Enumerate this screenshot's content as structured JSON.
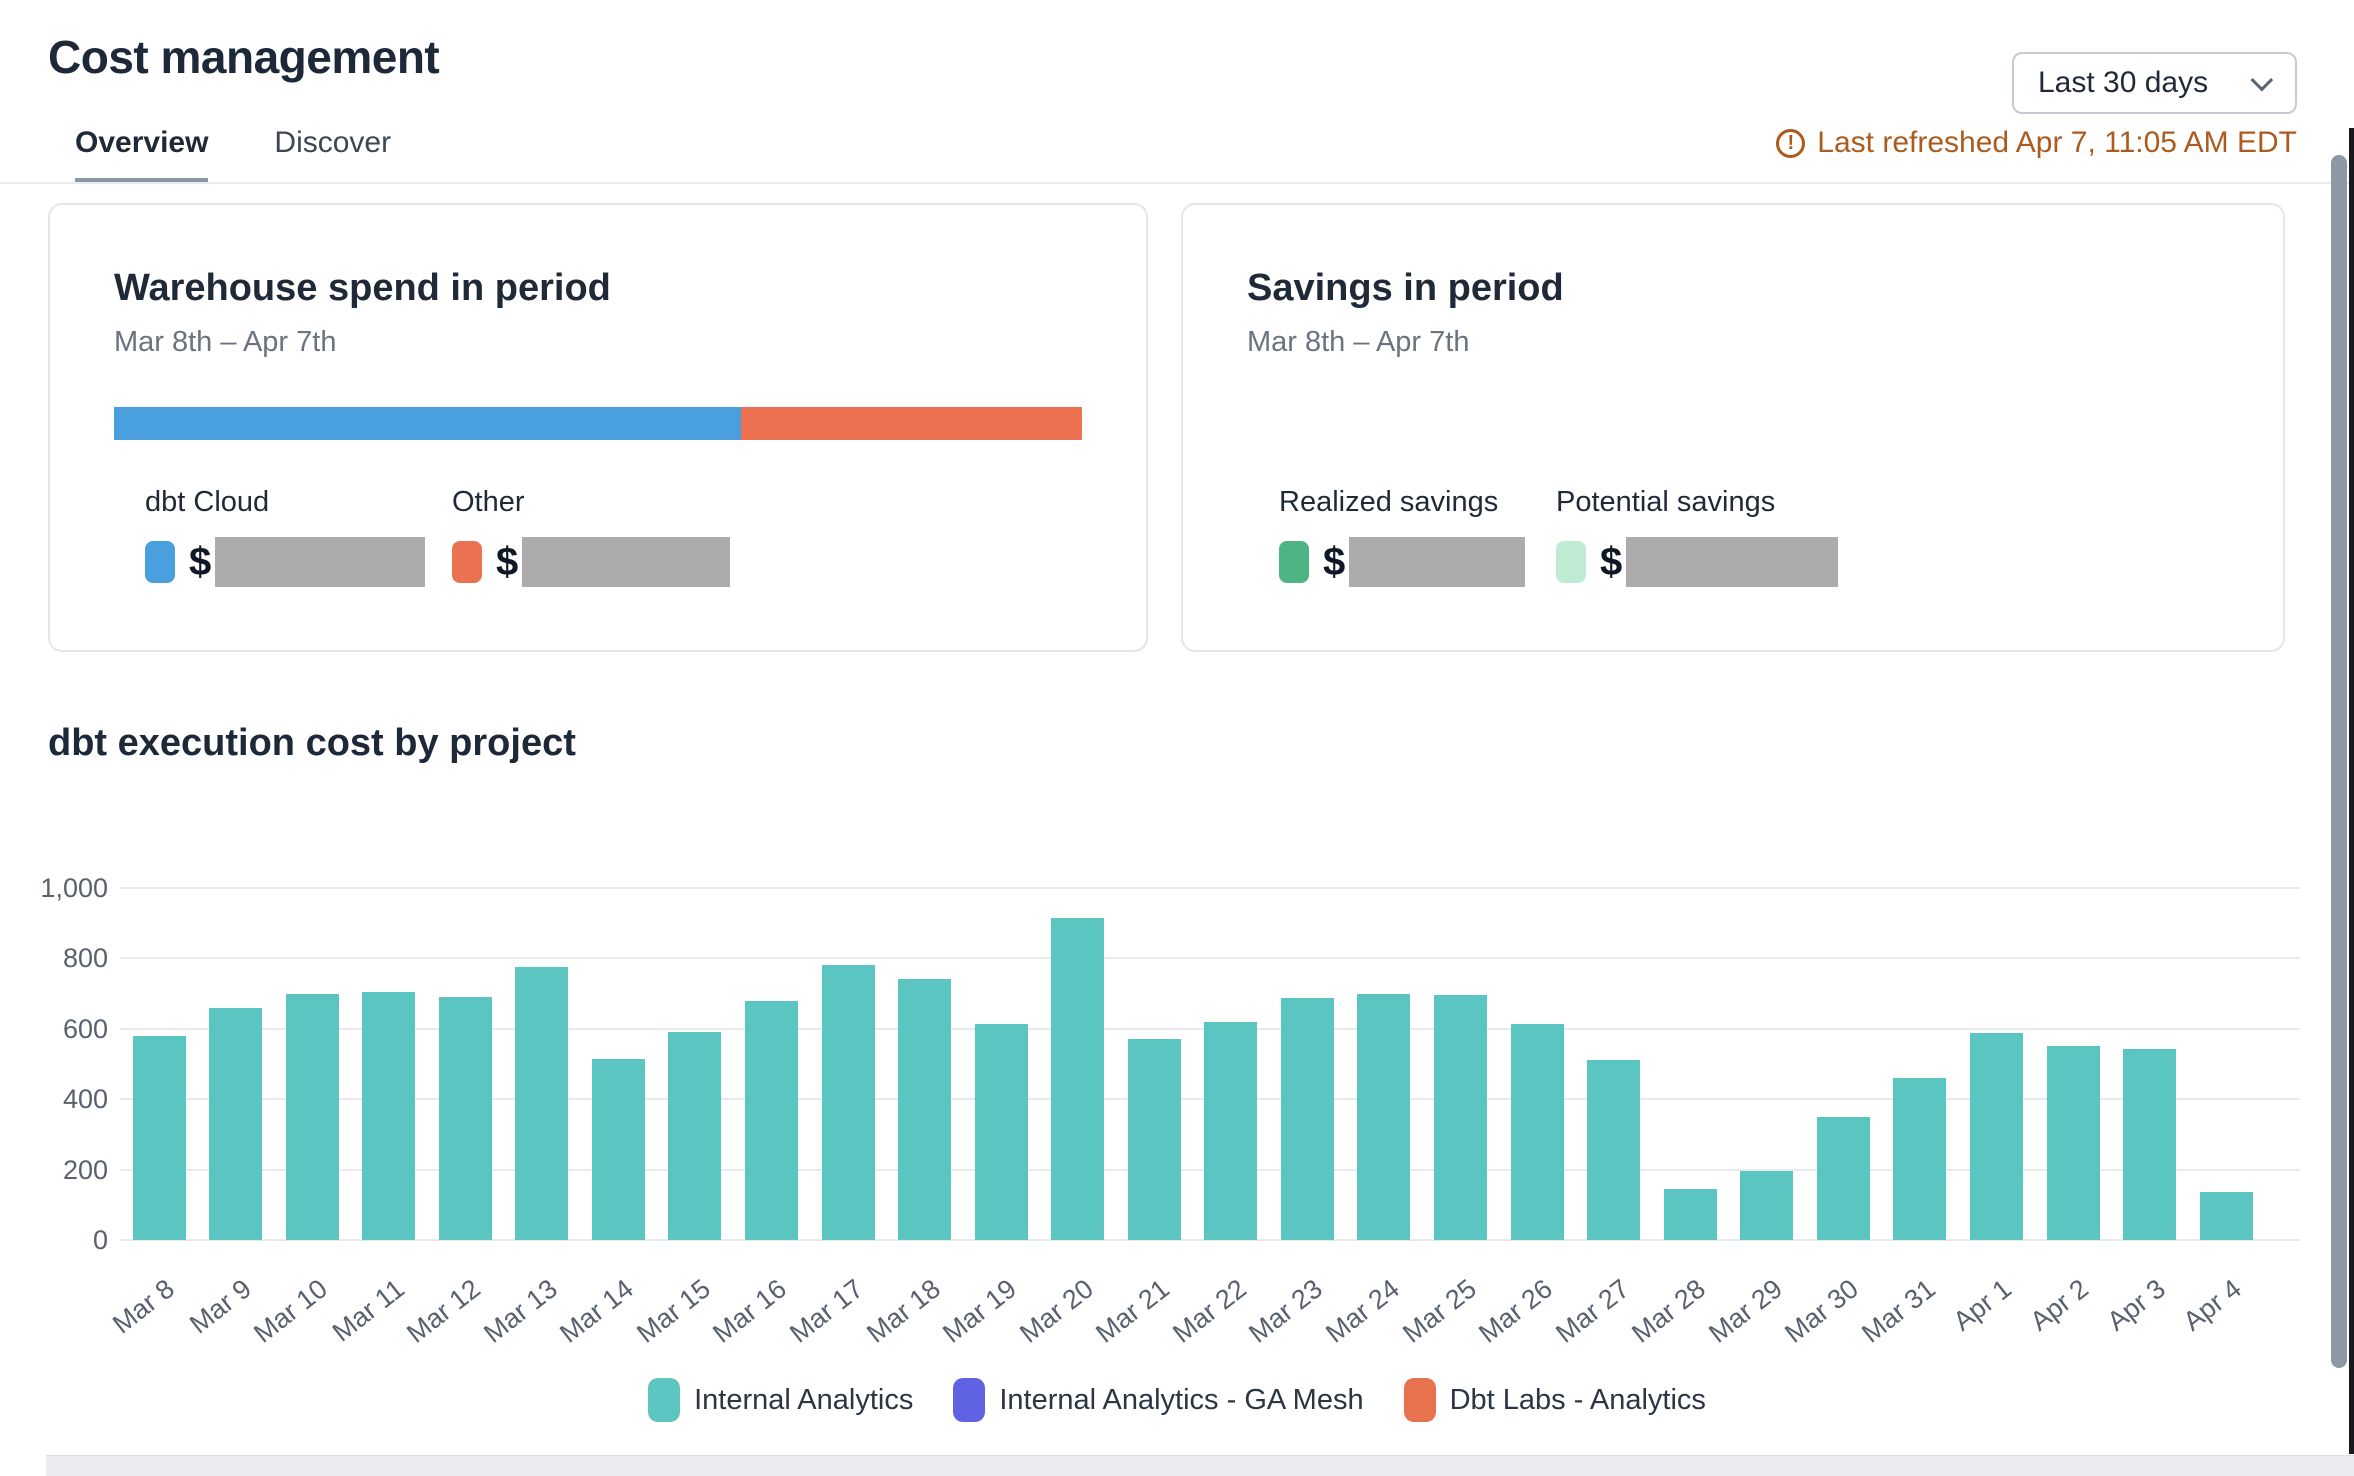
{
  "header": {
    "title": "Cost management",
    "tabs": [
      {
        "label": "Overview",
        "active": true
      },
      {
        "label": "Discover",
        "active": false
      }
    ],
    "period_selector": {
      "value": "Last 30 days"
    },
    "last_refreshed": "Last refreshed Apr 7, 11:05 AM EDT"
  },
  "cards": {
    "warehouse": {
      "title": "Warehouse spend in period",
      "date_range": "Mar 8th – Apr 7th",
      "segments": [
        {
          "label": "dbt Cloud",
          "color": "#4aa0df",
          "pct": 64.8,
          "value_prefix": "$",
          "value_redacted": true
        },
        {
          "label": "Other",
          "color": "#eb7150",
          "pct": 35.2,
          "value_prefix": "$",
          "value_redacted": true
        }
      ]
    },
    "savings": {
      "title": "Savings in period",
      "date_range": "Mar 8th – Apr 7th",
      "items": [
        {
          "label": "Realized savings",
          "color": "#4fb483",
          "value_prefix": "$",
          "value_redacted": true
        },
        {
          "label": "Potential savings",
          "color": "#c0ebd3",
          "value_prefix": "$",
          "value_redacted": true
        }
      ]
    }
  },
  "chart_section": {
    "title": "dbt execution cost by project"
  },
  "chart_data": {
    "type": "bar",
    "title": "dbt execution cost by project",
    "categories": [
      "Mar 8",
      "Mar 9",
      "Mar 10",
      "Mar 11",
      "Mar 12",
      "Mar 13",
      "Mar 14",
      "Mar 15",
      "Mar 16",
      "Mar 17",
      "Mar 18",
      "Mar 19",
      "Mar 20",
      "Mar 21",
      "Mar 22",
      "Mar 23",
      "Mar 24",
      "Mar 25",
      "Mar 26",
      "Mar 27",
      "Mar 28",
      "Mar 29",
      "Mar 30",
      "Mar 31",
      "Apr 1",
      "Apr 2",
      "Apr 3",
      "Apr 4"
    ],
    "series": [
      {
        "name": "Internal Analytics",
        "color": "#5bc5c2",
        "values": [
          580,
          660,
          700,
          705,
          690,
          775,
          515,
          592,
          680,
          780,
          742,
          615,
          915,
          572,
          620,
          687,
          698,
          695,
          613,
          510,
          145,
          197,
          350,
          460,
          588,
          552,
          543,
          135
        ]
      },
      {
        "name": "Internal Analytics - GA Mesh",
        "color": "#5f63e3",
        "values": [
          0,
          0,
          0,
          0,
          0,
          0,
          0,
          0,
          0,
          0,
          0,
          0,
          0,
          0,
          0,
          0,
          0,
          0,
          0,
          0,
          0,
          0,
          0,
          0,
          0,
          0,
          0,
          0
        ]
      },
      {
        "name": "Dbt Labs - Analytics",
        "color": "#e8714e",
        "values": [
          0,
          0,
          0,
          0,
          0,
          0,
          0,
          0,
          0,
          0,
          0,
          0,
          0,
          0,
          0,
          0,
          0,
          0,
          0,
          0,
          0,
          0,
          0,
          0,
          0,
          0,
          0,
          0
        ]
      }
    ],
    "xlabel": "",
    "ylabel": "",
    "ylim": [
      0,
      1000
    ],
    "yticks": [
      0,
      200,
      400,
      600,
      800,
      1000
    ],
    "grid": true,
    "legend_position": "bottom"
  }
}
